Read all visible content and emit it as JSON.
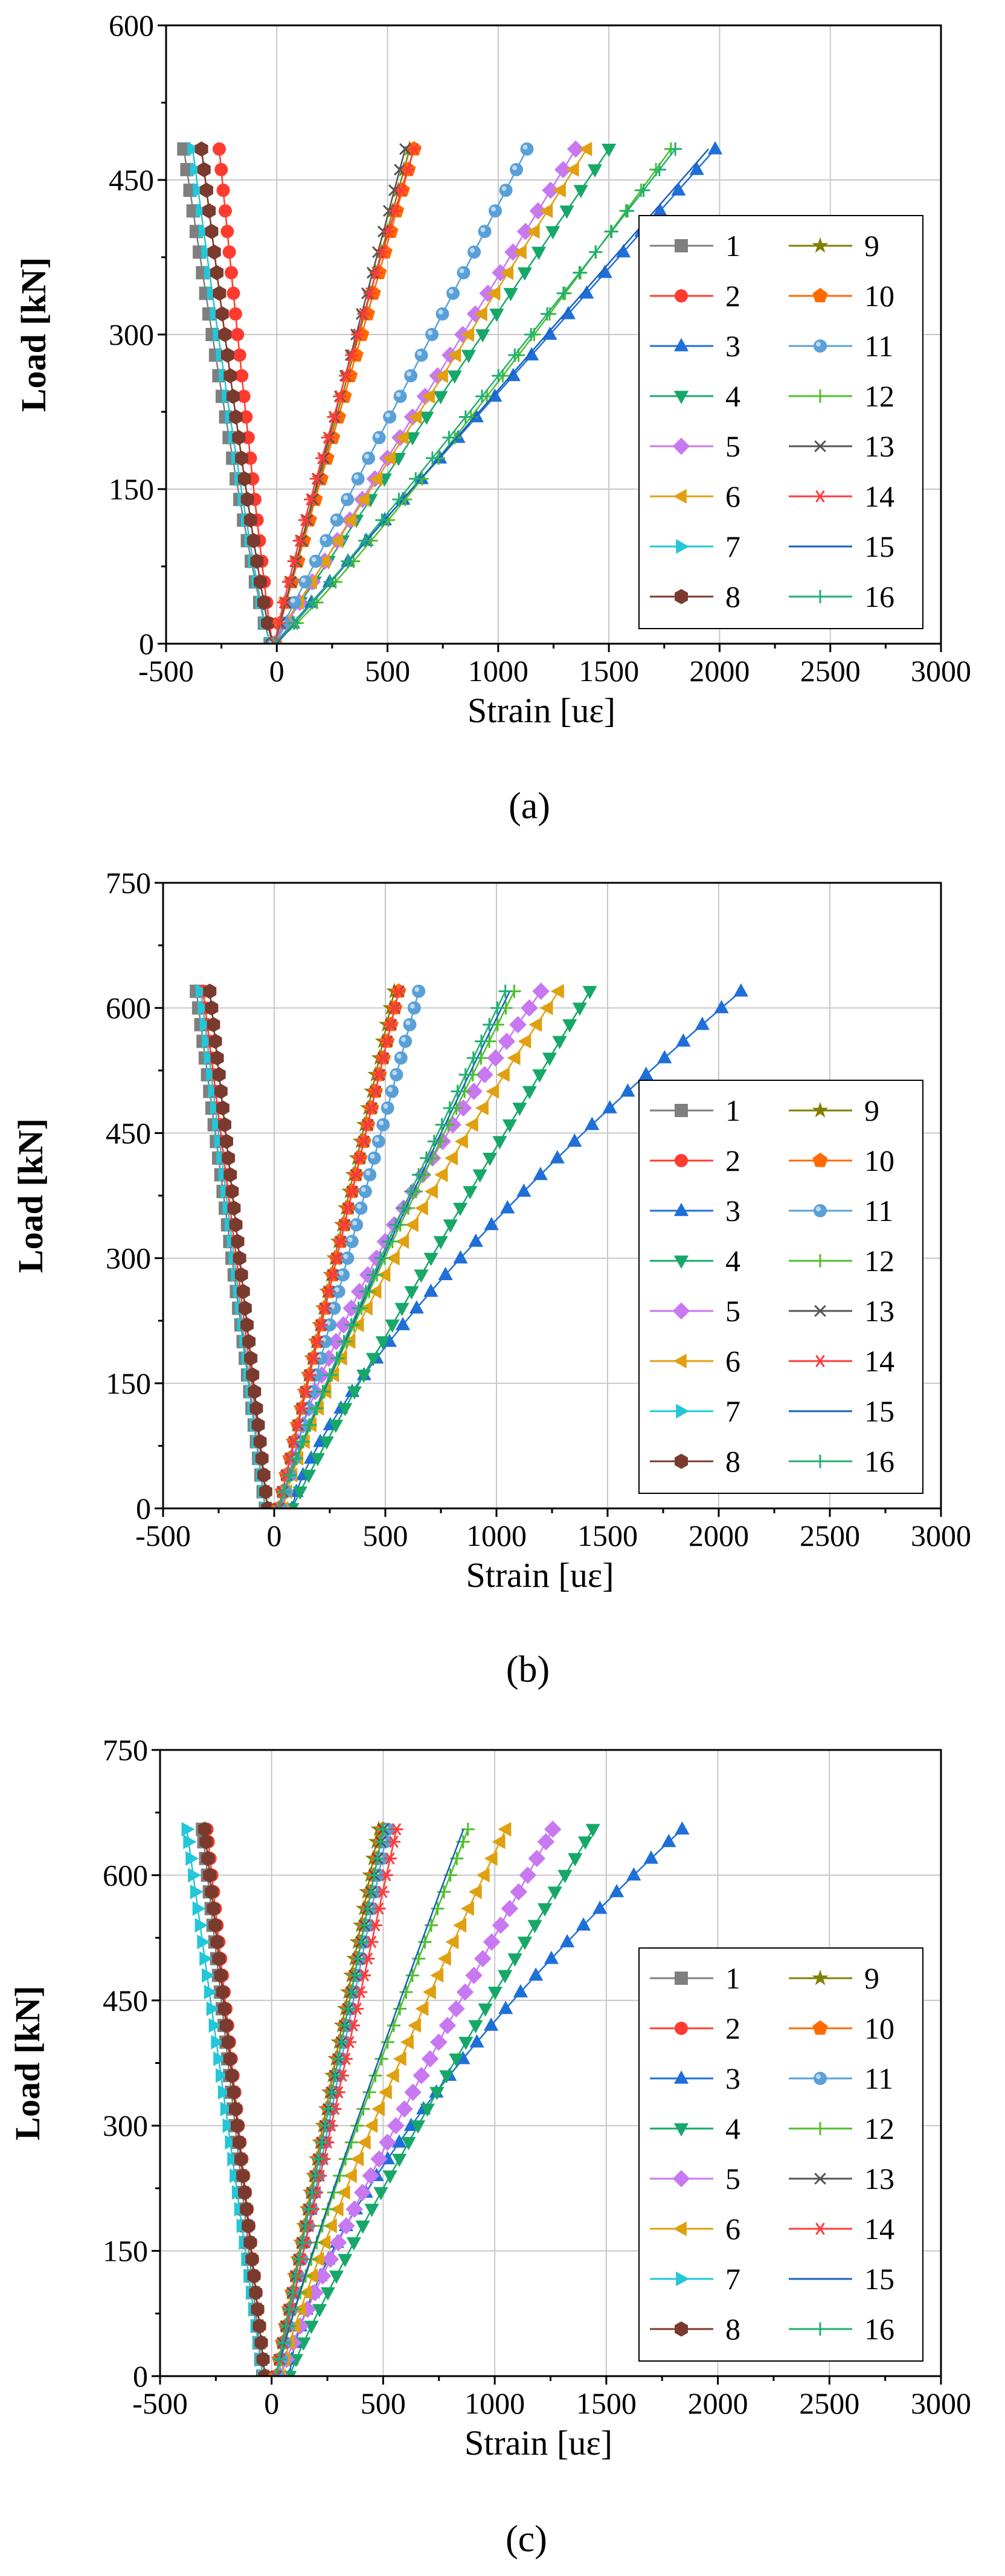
{
  "figure": {
    "panel_captions": [
      "(a)",
      "(b)",
      "(c)"
    ]
  },
  "styles": {
    "colors": [
      "#7f7f7f",
      "#ff3b2f",
      "#1f6fd8",
      "#17a869",
      "#c878f0",
      "#e0a010",
      "#22c7d8",
      "#7a3b2e",
      "#808000",
      "#ff6a00",
      "#5aa0d8",
      "#4fbf2a",
      "#555555",
      "#ff3b3b",
      "#1660c0",
      "#20b070"
    ],
    "markers": [
      "square",
      "circle",
      "triangle-up",
      "triangle-down",
      "diamond",
      "triangle-left",
      "triangle-right",
      "hexagon",
      "star",
      "pentagon",
      "sphere",
      "plus",
      "cross",
      "asterisk",
      "none",
      "plus"
    ]
  },
  "chart_data": [
    {
      "type": "line",
      "caption": "(a)",
      "xlabel": "Strain [uε]",
      "ylabel": "Load [kN]",
      "xlim": [
        -500,
        3000
      ],
      "ylim": [
        0,
        600
      ],
      "xticks": [
        "-500",
        "0",
        "500",
        "1000",
        "1500",
        "2000",
        "2500",
        "3000"
      ],
      "yticks": [
        "0",
        "150",
        "300",
        "450",
        "600"
      ],
      "ytick_values": [
        0,
        150,
        300,
        450,
        600
      ],
      "grid": true,
      "legend_position": "right",
      "legend_labels": [
        "1",
        "2",
        "3",
        "4",
        "5",
        "6",
        "7",
        "8",
        "9",
        "10",
        "11",
        "12",
        "13",
        "14",
        "15",
        "16"
      ],
      "load": [
        0,
        20,
        40,
        60,
        80,
        100,
        120,
        140,
        160,
        180,
        200,
        220,
        240,
        260,
        280,
        300,
        320,
        340,
        360,
        380,
        400,
        420,
        440,
        460,
        480
      ],
      "strain_max": [
        -420,
        -260,
        1980,
        1500,
        1350,
        1400,
        -380,
        -340,
        600,
        620,
        1130,
        1780,
        580,
        620,
        1950,
        1800
      ],
      "strain_start": [
        -30,
        -20,
        -10,
        -20,
        -10,
        -20,
        -30,
        -20,
        -10,
        -10,
        -15,
        -10,
        -10,
        -10,
        0,
        -10
      ],
      "curve_shape": [
        0.85,
        0.9,
        1.0,
        1.0,
        1.0,
        1.0,
        0.85,
        0.85,
        1.0,
        1.0,
        1.0,
        0.9,
        1.0,
        1.1,
        1.0,
        0.95
      ]
    },
    {
      "type": "line",
      "caption": "(b)",
      "xlabel": "Strain [uε]",
      "ylabel": "Load [kN]",
      "xlim": [
        -500,
        3000
      ],
      "ylim": [
        0,
        750
      ],
      "xticks": [
        "-500",
        "0",
        "500",
        "1000",
        "1500",
        "2000",
        "2500",
        "3000"
      ],
      "yticks": [
        "0",
        "150",
        "300",
        "450",
        "600",
        "750"
      ],
      "ytick_values": [
        0,
        150,
        300,
        450,
        600,
        750
      ],
      "grid": true,
      "legend_position": "right",
      "legend_labels": [
        "1",
        "2",
        "3",
        "4",
        "5",
        "6",
        "7",
        "8",
        "9",
        "10",
        "11",
        "12",
        "13",
        "14",
        "15",
        "16"
      ],
      "load": [
        0,
        20,
        40,
        60,
        80,
        100,
        120,
        140,
        160,
        180,
        200,
        220,
        240,
        260,
        280,
        300,
        320,
        340,
        360,
        380,
        400,
        420,
        440,
        460,
        480,
        500,
        520,
        540,
        560,
        580,
        600,
        620
      ],
      "strain_max": [
        -350,
        -320,
        2100,
        1420,
        1200,
        1280,
        -330,
        -290,
        540,
        560,
        650,
        1080,
        560,
        560,
        1060,
        1040
      ],
      "strain_start": [
        -40,
        -30,
        80,
        80,
        40,
        40,
        -40,
        -30,
        20,
        20,
        30,
        20,
        20,
        20,
        20,
        20
      ],
      "curve_shape": [
        1.0,
        1.0,
        1.35,
        1.05,
        1.4,
        1.25,
        1.0,
        1.0,
        1.0,
        1.0,
        1.0,
        1.1,
        1.0,
        1.0,
        1.1,
        1.1
      ]
    },
    {
      "type": "line",
      "caption": "(c)",
      "xlabel": "Strain [uε]",
      "ylabel": "Load [kN]",
      "xlim": [
        -500,
        3000
      ],
      "ylim": [
        0,
        750
      ],
      "xticks": [
        "-500",
        "0",
        "500",
        "1000",
        "1500",
        "2000",
        "2500",
        "3000"
      ],
      "yticks": [
        "0",
        "150",
        "300",
        "450",
        "600",
        "750"
      ],
      "ytick_values": [
        0,
        150,
        300,
        450,
        600,
        750
      ],
      "grid": true,
      "legend_position": "right",
      "legend_labels": [
        "1",
        "2",
        "3",
        "4",
        "5",
        "6",
        "7",
        "8",
        "9",
        "10",
        "11",
        "12",
        "13",
        "14",
        "15",
        "16"
      ],
      "load": [
        0,
        20,
        40,
        60,
        80,
        100,
        120,
        140,
        160,
        180,
        200,
        220,
        240,
        260,
        280,
        300,
        320,
        340,
        360,
        380,
        400,
        420,
        440,
        460,
        480,
        500,
        520,
        540,
        560,
        580,
        600,
        620,
        640,
        655
      ],
      "strain_max": [
        -310,
        -290,
        1840,
        1440,
        1260,
        1050,
        -380,
        -300,
        480,
        500,
        520,
        880,
        500,
        560,
        860,
        500
      ],
      "strain_start": [
        -40,
        -30,
        80,
        80,
        40,
        40,
        -40,
        -30,
        20,
        20,
        30,
        20,
        20,
        20,
        20,
        20
      ],
      "curve_shape": [
        1.0,
        1.0,
        1.5,
        1.1,
        1.1,
        1.15,
        1.0,
        1.0,
        1.0,
        1.0,
        1.0,
        1.1,
        1.0,
        1.0,
        1.1,
        1.0
      ]
    }
  ]
}
